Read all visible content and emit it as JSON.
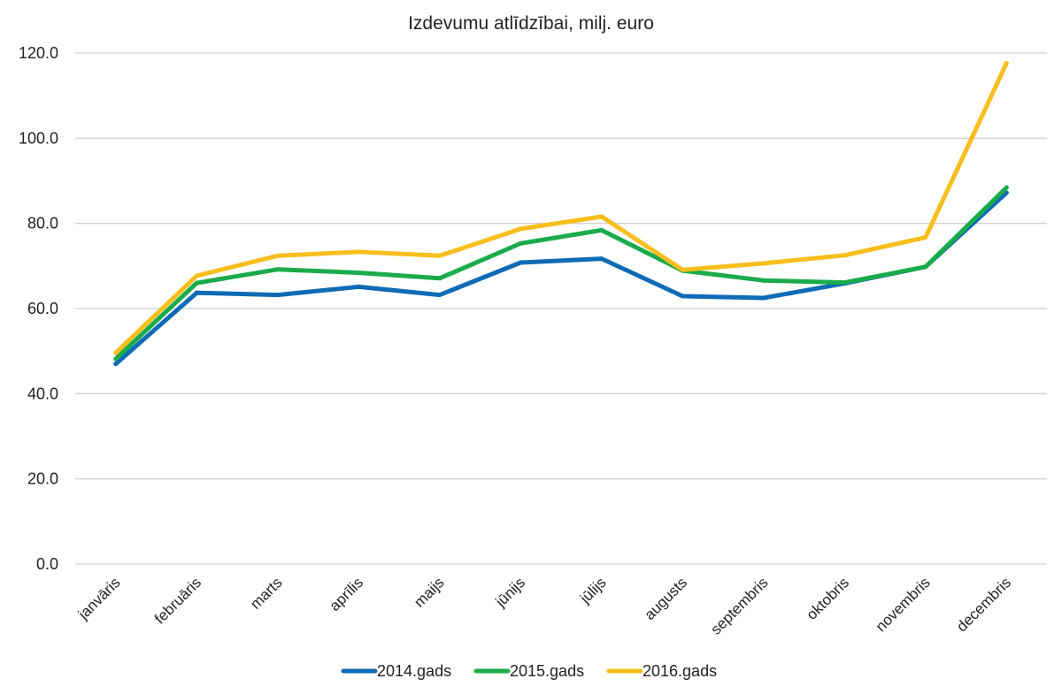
{
  "chart_data": {
    "type": "line",
    "title": "Izdevumu atlīdzībai, milj. euro",
    "xlabel": "",
    "ylabel": "",
    "ylim": [
      0,
      120
    ],
    "yticks": [
      "0.0",
      "20.0",
      "40.0",
      "60.0",
      "80.0",
      "100.0",
      "120.0"
    ],
    "grid": true,
    "legend_position": "bottom",
    "categories": [
      "janvāris",
      "februāris",
      "marts",
      "aprīlis",
      "maijs",
      "jūnijs",
      "jūlijs",
      "augusts",
      "septembris",
      "oktobris",
      "novembris",
      "decembris"
    ],
    "series": [
      {
        "name": "2014.gads",
        "color": "#0f6bb5",
        "values": [
          47.0,
          63.7,
          63.2,
          65.1,
          63.2,
          70.8,
          71.7,
          62.9,
          62.5,
          65.9,
          69.8,
          87.2
        ]
      },
      {
        "name": "2015.gads",
        "color": "#1aab4b",
        "values": [
          48.2,
          66.0,
          69.2,
          68.4,
          67.1,
          75.3,
          78.4,
          68.9,
          66.6,
          66.1,
          69.8,
          88.4
        ]
      },
      {
        "name": "2016.gads",
        "color": "#f7be1e",
        "values": [
          49.6,
          67.7,
          72.4,
          73.3,
          72.4,
          78.7,
          81.6,
          69.1,
          70.6,
          72.5,
          76.7,
          117.6
        ]
      }
    ]
  }
}
